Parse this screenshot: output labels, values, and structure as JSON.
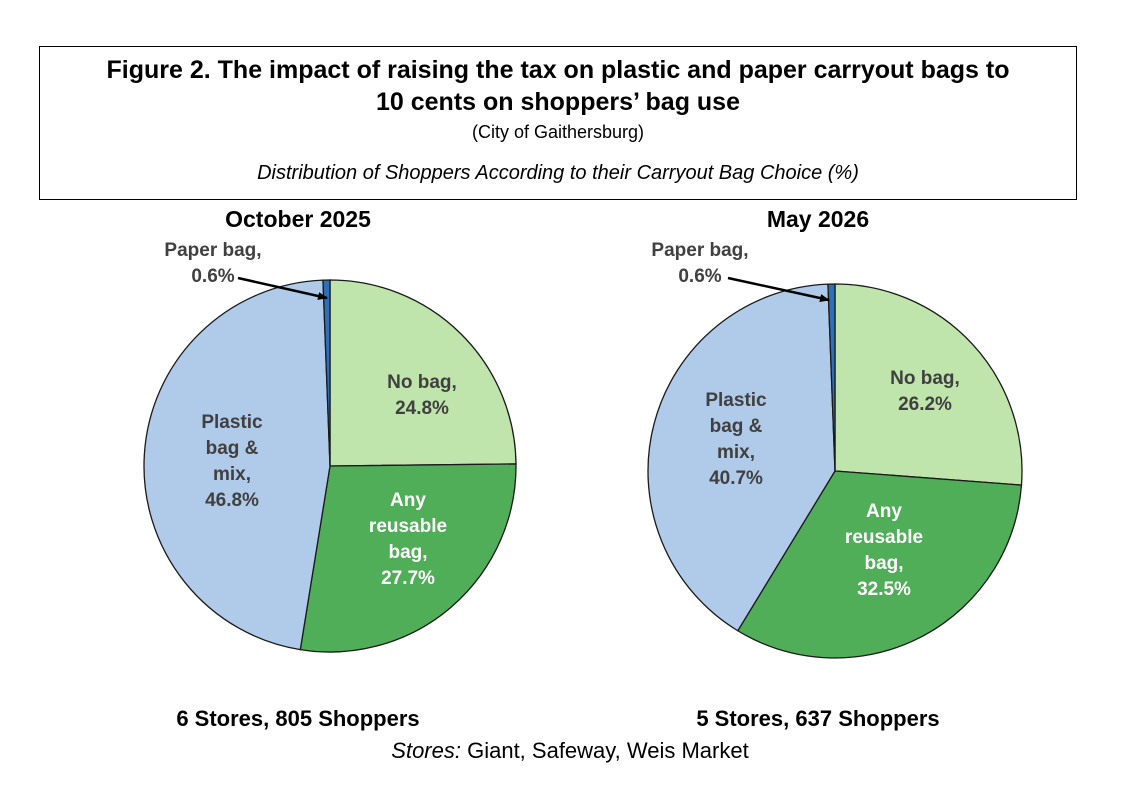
{
  "figure": {
    "title_line1": "Figure 2. The impact of raising the tax on plastic and paper carryout bags to",
    "title_line2": "10 cents on shoppers’ bag use",
    "subtitle": "(City of Gaithersburg)",
    "caption": "Distribution of Shoppers According to their Carryout Bag Choice (%)"
  },
  "chart_data": [
    {
      "type": "pie",
      "title": "October 2025",
      "note": "6 Stores, 805 Shoppers",
      "start_angle_deg": 0,
      "direction": "clockwise",
      "slices": [
        {
          "label_lines": [
            "No bag,",
            "24.8%"
          ],
          "name": "No bag",
          "value": 24.8,
          "color": "#bfe5ad",
          "label_color": "#404040"
        },
        {
          "label_lines": [
            "Any",
            "reusable",
            "bag,",
            "27.7%"
          ],
          "name": "Any reusable bag",
          "value": 27.7,
          "color": "#50ad58",
          "label_color": "#ffffff"
        },
        {
          "label_lines": [
            "Plastic",
            "bag &",
            "mix,",
            "46.8%"
          ],
          "name": "Plastic bag & mix",
          "value": 46.8,
          "color": "#b0caea",
          "label_color": "#404040"
        },
        {
          "label_lines": [
            "Paper bag,",
            "0.6%"
          ],
          "name": "Paper bag",
          "value": 0.6,
          "color": "#2e6fb7",
          "label_color": "#404040"
        }
      ]
    },
    {
      "type": "pie",
      "title": "May 2026",
      "note": "5 Stores, 637 Shoppers",
      "start_angle_deg": 0,
      "direction": "clockwise",
      "slices": [
        {
          "label_lines": [
            "No bag,",
            "26.2%"
          ],
          "name": "No bag",
          "value": 26.2,
          "color": "#bfe5ad",
          "label_color": "#404040"
        },
        {
          "label_lines": [
            "Any",
            "reusable",
            "bag,",
            "32.5%"
          ],
          "name": "Any reusable bag",
          "value": 32.5,
          "color": "#50ad58",
          "label_color": "#ffffff"
        },
        {
          "label_lines": [
            "Plastic",
            "bag &",
            "mix,",
            "40.7%"
          ],
          "name": "Plastic bag & mix",
          "value": 40.7,
          "color": "#b0caea",
          "label_color": "#404040"
        },
        {
          "label_lines": [
            "Paper bag,",
            "0.6%"
          ],
          "name": "Paper bag",
          "value": 0.6,
          "color": "#2e6fb7",
          "label_color": "#404040"
        }
      ]
    }
  ],
  "footer": {
    "stores_label": "Stores:",
    "stores_list": " Giant, Safeway, Weis Market"
  }
}
